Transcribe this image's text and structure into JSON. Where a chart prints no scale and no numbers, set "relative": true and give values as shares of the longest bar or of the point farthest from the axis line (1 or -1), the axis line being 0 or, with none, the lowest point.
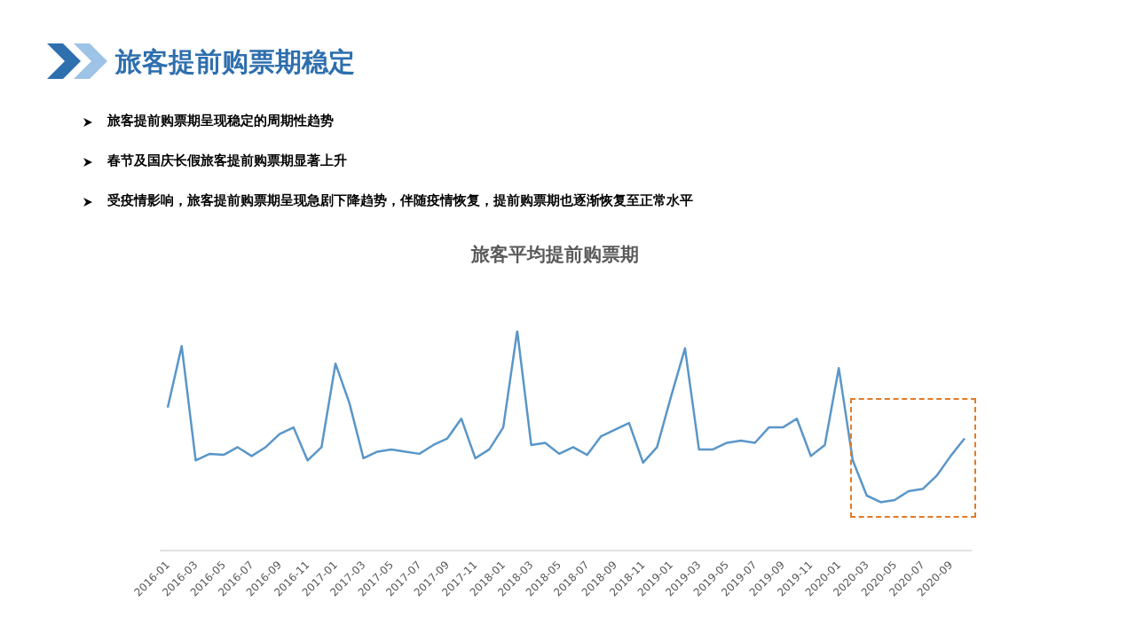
{
  "chart_data": {
    "type": "line",
    "title": "旅客平均提前购票期",
    "annotations": [
      "旅客提前购票期稳定",
      "旅客提前购票期呈现稳定的周期性趋势",
      "春节及国庆长假旅客提前购票期显著上升",
      "受疫情影响，旅客提前购票期呈现急剧下降趋势，伴随疫情恢复，提前购票期也逐渐恢复至正常水平"
    ],
    "categories": [
      "2016-01",
      null,
      "2016-03",
      null,
      "2016-05",
      null,
      "2016-07",
      null,
      "2016-09",
      null,
      "2016-11",
      null,
      "2017-01",
      null,
      "2017-03",
      null,
      "2017-05",
      null,
      "2017-07",
      null,
      "2017-09",
      null,
      "2017-11",
      null,
      "2018-01",
      null,
      "2018-03",
      null,
      "2018-05",
      null,
      "2018-07",
      null,
      "2018-09",
      null,
      "2018-11",
      null,
      "2019-01",
      null,
      "2019-03",
      null,
      "2019-05",
      null,
      "2019-07",
      null,
      "2019-09",
      null,
      "2019-11",
      null,
      "2020-01",
      null,
      "2020-03",
      null,
      "2020-05",
      null,
      "2020-07",
      null,
      "2020-09",
      null
    ],
    "relative": true,
    "series": [
      {
        "color": "#5a96c8",
        "values": [
          0.65,
          0.93,
          0.41,
          0.44,
          0.435,
          0.47,
          0.43,
          0.47,
          0.53,
          0.56,
          0.41,
          0.47,
          0.85,
          0.67,
          0.42,
          0.45,
          0.46,
          0.45,
          0.44,
          0.48,
          0.51,
          0.6,
          0.42,
          0.46,
          0.56,
          1,
          0.48,
          0.49,
          0.44,
          0.47,
          0.435,
          0.52,
          0.55,
          0.58,
          0.4,
          0.47,
          0.7,
          0.92,
          0.46,
          0.46,
          0.49,
          0.5,
          0.49,
          0.56,
          0.56,
          0.6,
          0.43,
          0.48,
          0.83,
          0.41,
          0.25,
          0.22,
          0.23,
          0.27,
          0.28,
          0.34,
          0.43,
          0.51
        ]
      }
    ],
    "grid": false,
    "legend": false,
    "marker": "none",
    "line_style": "solid"
  }
}
